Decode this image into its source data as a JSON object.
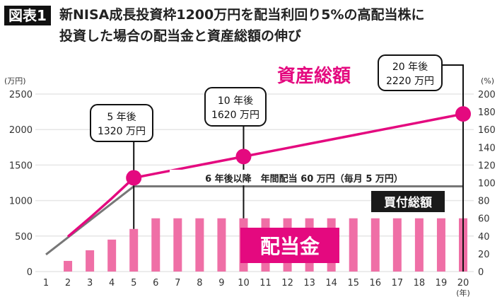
{
  "header": {
    "badge": "図表1",
    "title_line1": "新NISA成長投資枠1200万円を配当利回り5%の高配当株に",
    "title_line2": "投資した場合の配当金と資産総額の伸び"
  },
  "chart_data": {
    "type": "bar+line",
    "title": "新NISA成長投資枠1200万円を配当利回り5%の高配当株に投資した場合の配当金と資産総額の伸び",
    "x": [
      1,
      2,
      3,
      4,
      5,
      6,
      7,
      8,
      9,
      10,
      11,
      12,
      13,
      14,
      15,
      16,
      17,
      18,
      19,
      20
    ],
    "xlabel": "(年)",
    "ylabel_left": "(万円)",
    "ylim_left": [
      0,
      2500
    ],
    "yticks_left": [
      0,
      500,
      1000,
      1500,
      2000,
      2500
    ],
    "ylabel_right": "(%)",
    "ylim_right": [
      0,
      200
    ],
    "yticks_right": [
      0,
      20,
      40,
      60,
      80,
      100,
      120,
      140,
      160,
      180,
      200
    ],
    "grid": true,
    "series": [
      {
        "name": "配当金",
        "type": "bar",
        "axis": "right",
        "color": "#ef6fa6",
        "values": [
          0,
          12,
          24,
          36,
          48,
          60,
          60,
          60,
          60,
          60,
          60,
          60,
          60,
          60,
          60,
          60,
          60,
          60,
          60,
          60
        ]
      },
      {
        "name": "買付総額",
        "type": "line",
        "axis": "left",
        "color": "#777777",
        "values": [
          240,
          480,
          720,
          960,
          1200,
          1200,
          1200,
          1200,
          1200,
          1200,
          1200,
          1200,
          1200,
          1200,
          1200,
          1200,
          1200,
          1200,
          1200,
          1200
        ]
      },
      {
        "name": "資産総額",
        "type": "line",
        "axis": "left",
        "color": "#e4097f",
        "values": [
          null,
          492,
          756,
          1032,
          1320,
          1380,
          1440,
          1500,
          1560,
          1620,
          1680,
          1740,
          1800,
          1860,
          1920,
          1980,
          2040,
          2100,
          2160,
          2220
        ]
      }
    ],
    "callouts": [
      {
        "year": 5,
        "line1": "5 年後",
        "line2": "1320 万円"
      },
      {
        "year": 10,
        "line1": "10 年後",
        "line2": "1620 万円"
      },
      {
        "year": 20,
        "line1": "20 年後",
        "line2": "2220 万円"
      }
    ],
    "annotation": "6 年後以降　年間配当 60 万円（毎月 5 万円）",
    "labels": {
      "assets": "資産総額",
      "purchase": "買付総額",
      "dividend": "配当金"
    }
  }
}
